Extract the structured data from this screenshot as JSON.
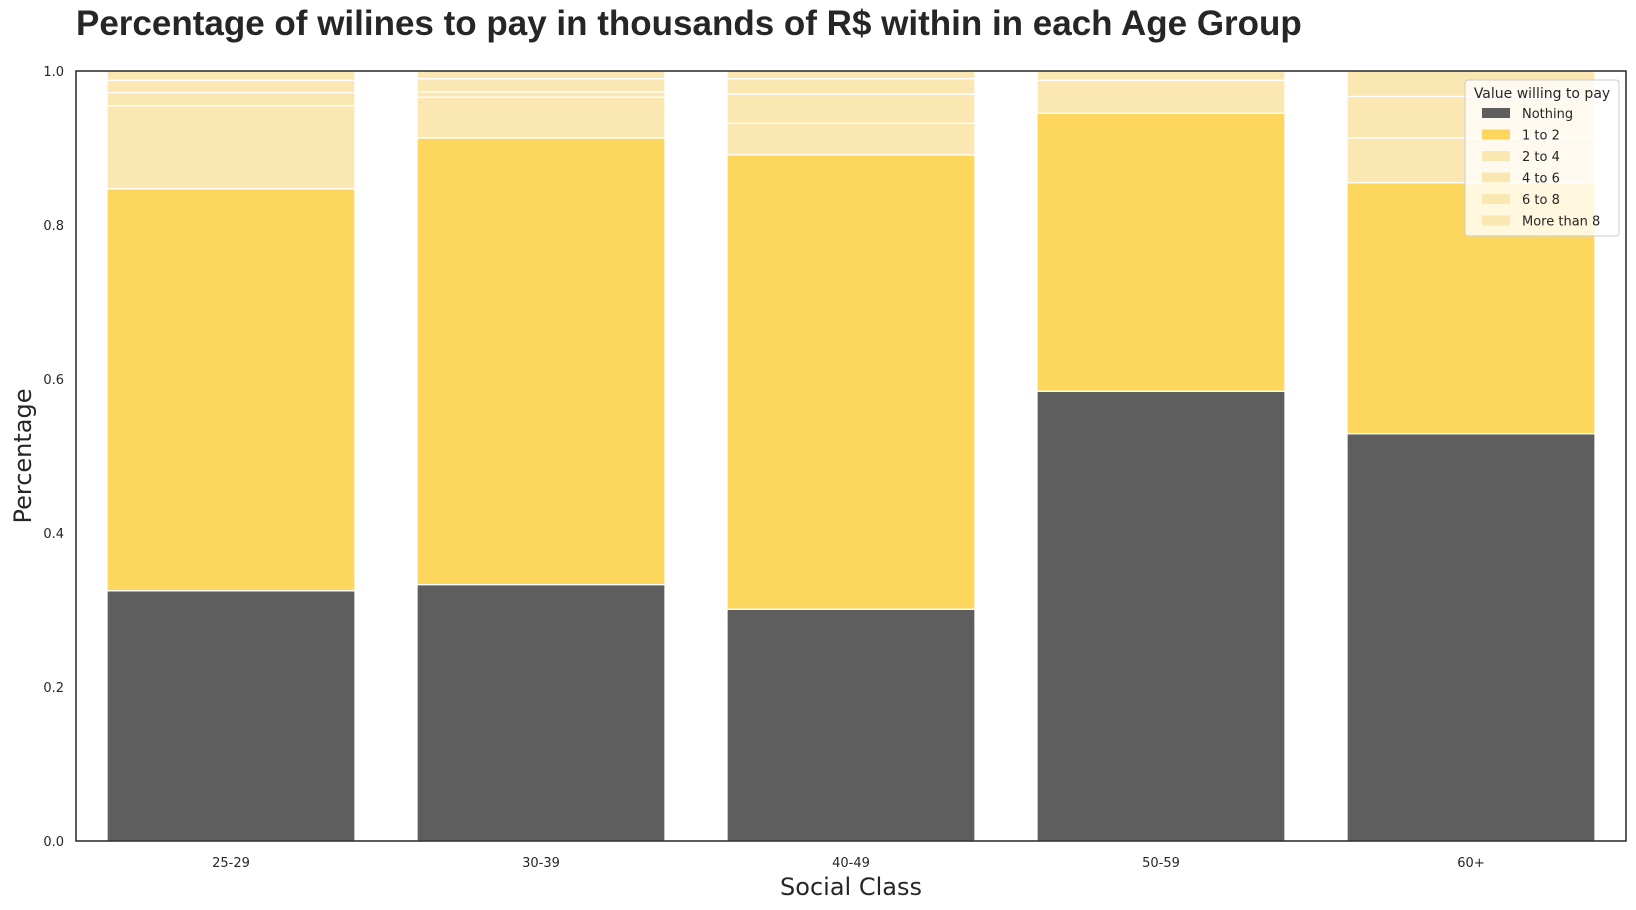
{
  "chart_data": {
    "type": "bar",
    "stacked": true,
    "normalized": true,
    "title": "Percentage of wilines to pay in thousands of R$ within in each Age Group",
    "xlabel": "Social Class",
    "ylabel": "Percentage",
    "categories": [
      "25-29",
      "30-39",
      "40-49",
      "50-59",
      "60+"
    ],
    "ylim": [
      0,
      1
    ],
    "yticks": [
      "0.0",
      "0.2",
      "0.4",
      "0.6",
      "0.8",
      "1.0"
    ],
    "grid": false,
    "legend": {
      "title": "Value willing to pay",
      "position": "top-right"
    },
    "series": [
      {
        "name": "Nothing",
        "color": "#5f5e5f",
        "values": [
          0.325,
          0.333,
          0.301,
          0.584,
          0.529
        ]
      },
      {
        "name": "1 to 2",
        "color": "#fdd65d",
        "values": [
          0.522,
          0.58,
          0.59,
          0.361,
          0.326
        ]
      },
      {
        "name": "2 to 4",
        "color": "#fbe7b2",
        "values": [
          0.108,
          0.053,
          0.041,
          0.043,
          0.058
        ]
      },
      {
        "name": "4 to 6",
        "color": "#fbe7b2",
        "values": [
          0.017,
          0.007,
          0.038,
          0.0,
          0.054
        ]
      },
      {
        "name": "6 to 8",
        "color": "#fbe7b2",
        "values": [
          0.016,
          0.017,
          0.02,
          0.0,
          0.0
        ]
      },
      {
        "name": "More than 8",
        "color": "#fbe7b2",
        "values": [
          0.012,
          0.01,
          0.01,
          0.012,
          0.033
        ]
      }
    ]
  }
}
